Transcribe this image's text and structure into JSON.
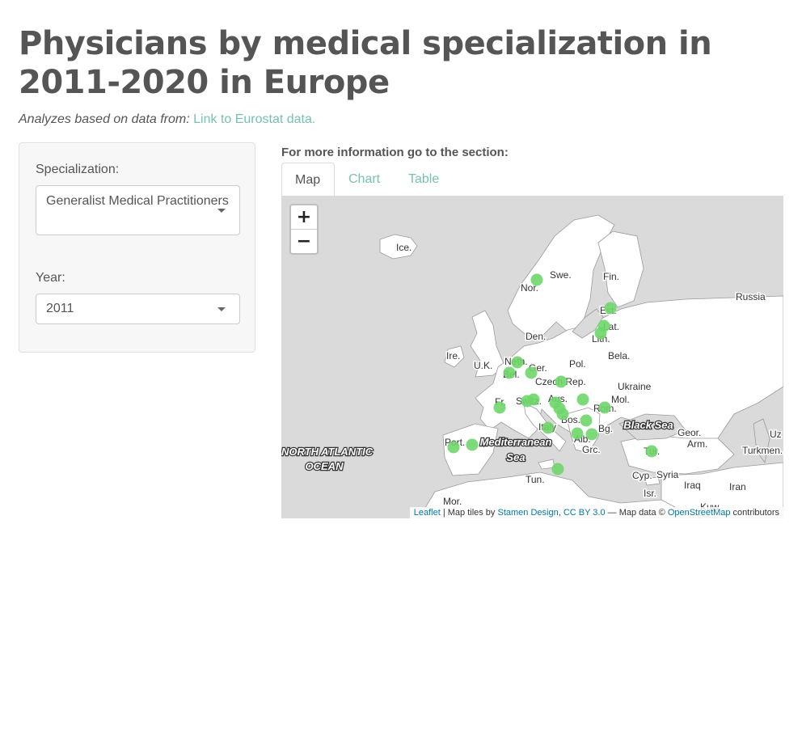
{
  "header": {
    "title": "Physicians by medical specialization in 2011-2020 in Europe",
    "subtitle_prefix": "Analyzes based on data from:",
    "subtitle_link": "Link to Eurostat data."
  },
  "sidebar": {
    "specialization_label": "Specialization:",
    "specialization_value": "Generalist Medical Practitioners",
    "year_label": "Year:",
    "year_value": "2011"
  },
  "main": {
    "info_text": "For more information go to the section:",
    "tabs": [
      {
        "label": "Map",
        "active": true
      },
      {
        "label": "Chart",
        "active": false
      },
      {
        "label": "Table",
        "active": false
      }
    ]
  },
  "map": {
    "zoom_in": "+",
    "zoom_out": "−",
    "marker_color": "#6ed66a",
    "labels": [
      "Ice.",
      "Swe.",
      "Fin.",
      "Nor.",
      "Russia",
      "Est.",
      "Lat.",
      "Den.",
      "Lith.",
      "Ire.",
      "U.K.",
      "Neth.",
      "Bela.",
      "Pol.",
      "Ger.",
      "Bel.",
      "Czech Rep.",
      "Ukraine",
      "Fr.",
      "Switz.",
      "Aus.",
      "Mol.",
      "Rom.",
      "Italy",
      "Bos.",
      "Bg.",
      "Geor.",
      "Port.",
      "Alb.",
      "Arm.",
      "Grc.",
      "Tur.",
      "Turkmen.",
      "Cyp.",
      "Syria",
      "Tun.",
      "Iraq",
      "Iran",
      "Isr.",
      "Mor.",
      "Kuw.",
      "Uz"
    ],
    "seas": {
      "atlantic_line1": "NORTH ATLANTIC",
      "atlantic_line2": "OCEAN",
      "med_line1": "Mediterranean",
      "med_line2": "Sea",
      "black_sea": "Black Sea"
    },
    "attribution": {
      "leaflet": "Leaflet",
      "tiles_by": " | Map tiles by ",
      "stamen": "Stamen Design",
      "comma": ", ",
      "cc": "CC BY 3.0",
      "dash": " — Map data © ",
      "osm": "OpenStreetMap",
      "contributors": " contributors"
    }
  }
}
